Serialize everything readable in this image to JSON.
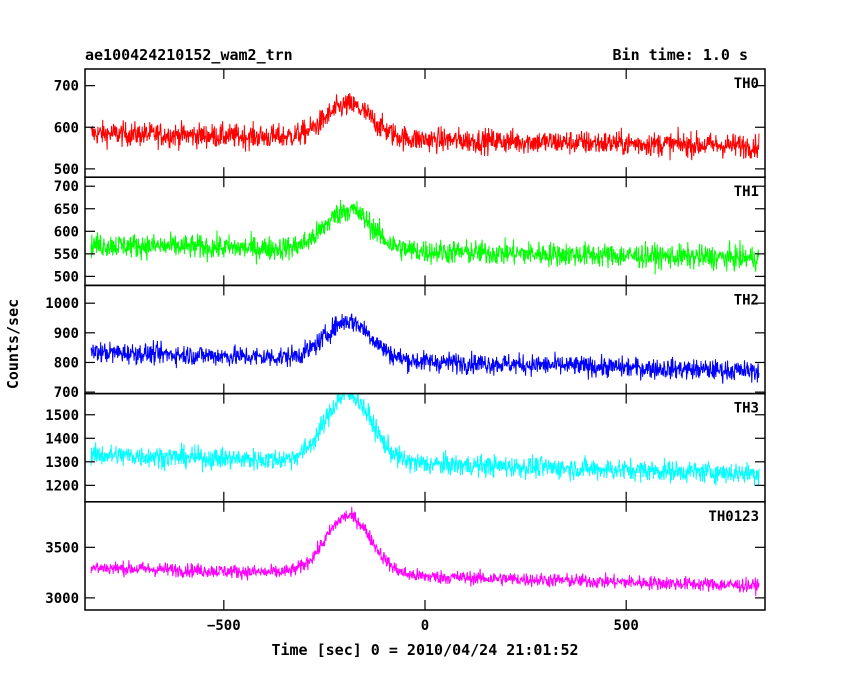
{
  "header": {
    "title": "ae100424210152_wam2_trn",
    "bin_time": "Bin time: 1.0 s"
  },
  "axes": {
    "xlabel": "Time [sec] 0 = 2010/04/24 21:01:52",
    "ylabel": "Counts/sec"
  },
  "chart_data": {
    "type": "line",
    "xlabel": "Time [sec] 0 = 2010/04/24 21:01:52",
    "ylabel": "Counts/sec",
    "xlim": [
      -845,
      845
    ],
    "x_ticks": [
      -500,
      0,
      500
    ],
    "x_tick_labels": [
      "−500",
      "0",
      "500"
    ],
    "grid": false,
    "x_range_data": [
      -830,
      830
    ],
    "peak_time": -190,
    "panels": [
      {
        "name": "TH0",
        "color": "#ff0000",
        "ylim": [
          480,
          740
        ],
        "yticks": [
          500,
          600,
          700
        ],
        "profile": {
          "base_start": 585,
          "base_end": 555,
          "peak_height": 80,
          "noise": 38
        }
      },
      {
        "name": "TH1",
        "color": "#00ff00",
        "ylim": [
          480,
          720
        ],
        "yticks": [
          500,
          550,
          600,
          650,
          700
        ],
        "profile": {
          "base_start": 570,
          "base_end": 540,
          "peak_height": 90,
          "noise": 35
        }
      },
      {
        "name": "TH2",
        "color": "#0000ff",
        "ylim": [
          695,
          1060
        ],
        "yticks": [
          700,
          800,
          900,
          1000
        ],
        "profile": {
          "base_start": 835,
          "base_end": 770,
          "peak_height": 130,
          "noise": 45
        }
      },
      {
        "name": "TH3",
        "color": "#00ffff",
        "ylim": [
          1130,
          1590
        ],
        "yticks": [
          1200,
          1300,
          1400,
          1500
        ],
        "profile": {
          "base_start": 1330,
          "base_end": 1250,
          "peak_height": 290,
          "noise": 60
        }
      },
      {
        "name": "TH0123",
        "color": "#ff00ff",
        "ylim": [
          2880,
          3950
        ],
        "yticks": [
          3000,
          3500
        ],
        "profile": {
          "base_start": 3300,
          "base_end": 3120,
          "peak_height": 580,
          "noise": 90
        }
      }
    ]
  }
}
